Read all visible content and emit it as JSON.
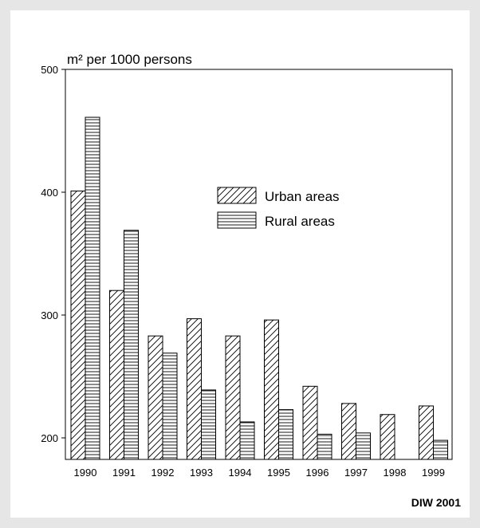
{
  "chart_data": {
    "type": "bar",
    "unit_label": "m² per 1000 persons",
    "categories": [
      "1990",
      "1991",
      "1992",
      "1993",
      "1994",
      "1995",
      "1996",
      "1997",
      "1998",
      "1999"
    ],
    "series": [
      {
        "name": "Urban areas",
        "pattern": "diagonal-hatch",
        "values": [
          401,
          320,
          283,
          297,
          283,
          296,
          242,
          228,
          219,
          226
        ]
      },
      {
        "name": "Rural areas",
        "pattern": "horizontal-hatch",
        "values": [
          461,
          369,
          269,
          239,
          213,
          223,
          203,
          204,
          180,
          198
        ]
      }
    ],
    "ylim": [
      180,
      500
    ],
    "yticks": [
      200,
      300,
      400,
      500
    ],
    "legend_position": "center-right",
    "source": "DIW 2001"
  },
  "colors": {
    "background": "#e6e6e6",
    "panel": "#ffffff",
    "ink": "#000000"
  }
}
